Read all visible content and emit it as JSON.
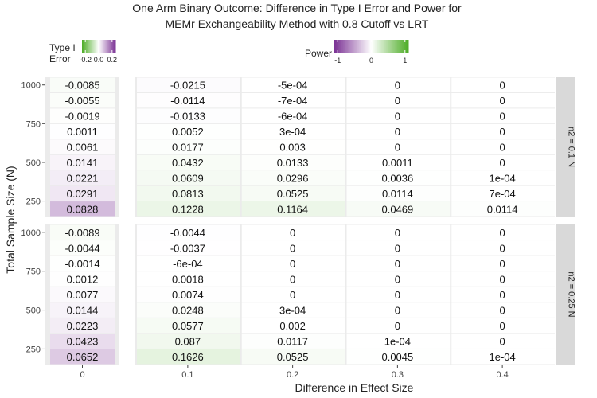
{
  "chart_data": {
    "type": "heatmap",
    "title": "One Arm Binary Outcome: Difference in Type I Error and Power for",
    "subtitle": "MEMr Exchangeability Method with 0.8 Cutoff vs LRT",
    "xlabel": "Difference in Effect Size",
    "ylabel": "Total Sample Size (N)",
    "facet_labels": [
      "n2 = 0.1 N",
      "n2 = 0.25 N"
    ],
    "grid": true,
    "legend_typeI": {
      "title_line1": "Type I",
      "title_line2": "Error",
      "tick_labels": [
        "-0.2",
        "0.0",
        "0.2"
      ],
      "ticks": [
        -0.2,
        0.0,
        0.2
      ],
      "range": [
        -0.25,
        0.25
      ],
      "low_color": "#4dac26",
      "mid_color": "#ffffff",
      "high_color": "#7b3294"
    },
    "legend_power": {
      "title": "Power",
      "tick_labels": [
        "-1",
        "0",
        "1"
      ],
      "ticks": [
        -1,
        0,
        1
      ],
      "range": [
        -1.1,
        1.1
      ],
      "low_color": "#7b3294",
      "mid_color": "#ffffff",
      "high_color": "#4dac26"
    },
    "x_ticks": [
      "0",
      "0.1",
      "0.2",
      "0.3",
      "0.4"
    ],
    "y_ticks": [
      "1000",
      "750",
      "500",
      "250"
    ],
    "y_tick_values": [
      1000,
      750,
      500,
      250
    ],
    "sample_sizes": [
      1000,
      900,
      800,
      700,
      600,
      500,
      400,
      300,
      200
    ],
    "panels": [
      {
        "facet": "n2 = 0.1 N",
        "typeI_labels": [
          "-0.0085",
          "-0.0055",
          "-0.0019",
          "0.0011",
          "0.0061",
          "0.0141",
          "0.0221",
          "0.0291",
          "0.0828"
        ],
        "typeI_values": [
          -0.0085,
          -0.0055,
          -0.0019,
          0.0011,
          0.0061,
          0.0141,
          0.0221,
          0.0291,
          0.0828
        ],
        "power_columns": [
          {
            "x": "0.1",
            "labels": [
              "-0.0215",
              "-0.0114",
              "-0.0133",
              "0.0052",
              "0.0177",
              "0.0432",
              "0.0609",
              "0.0813",
              "0.1228"
            ],
            "values": [
              -0.0215,
              -0.0114,
              -0.0133,
              0.0052,
              0.0177,
              0.0432,
              0.0609,
              0.0813,
              0.1228
            ]
          },
          {
            "x": "0.2",
            "labels": [
              "-5e-04",
              "-7e-04",
              "-6e-04",
              "3e-04",
              "0.003",
              "0.0133",
              "0.0296",
              "0.0525",
              "0.1164"
            ],
            "values": [
              -0.0005,
              -0.0007,
              -0.0006,
              0.0003,
              0.003,
              0.0133,
              0.0296,
              0.0525,
              0.1164
            ]
          },
          {
            "x": "0.3",
            "labels": [
              "0",
              "0",
              "0",
              "0",
              "0",
              "0.0011",
              "0.0036",
              "0.0114",
              "0.0469"
            ],
            "values": [
              0,
              0,
              0,
              0,
              0,
              0.0011,
              0.0036,
              0.0114,
              0.0469
            ]
          },
          {
            "x": "0.4",
            "labels": [
              "0",
              "0",
              "0",
              "0",
              "0",
              "0",
              "1e-04",
              "7e-04",
              "0.0114"
            ],
            "values": [
              0,
              0,
              0,
              0,
              0,
              0,
              0.0001,
              0.0007,
              0.0114
            ]
          }
        ]
      },
      {
        "facet": "n2 = 0.25 N",
        "typeI_labels": [
          "-0.0089",
          "-0.0044",
          "-0.0014",
          "0.0012",
          "0.0077",
          "0.0144",
          "0.0223",
          "0.0423",
          "0.0652"
        ],
        "typeI_values": [
          -0.0089,
          -0.0044,
          -0.0014,
          0.0012,
          0.0077,
          0.0144,
          0.0223,
          0.0423,
          0.0652
        ],
        "power_columns": [
          {
            "x": "0.1",
            "labels": [
              "-0.0044",
              "-0.0037",
              "-6e-04",
              "0.0018",
              "0.0074",
              "0.0248",
              "0.0577",
              "0.087",
              "0.1626"
            ],
            "values": [
              -0.0044,
              -0.0037,
              -0.0006,
              0.0018,
              0.0074,
              0.0248,
              0.0577,
              0.087,
              0.1626
            ]
          },
          {
            "x": "0.2",
            "labels": [
              "0",
              "0",
              "0",
              "0",
              "0",
              "3e-04",
              "0.002",
              "0.0117",
              "0.0525"
            ],
            "values": [
              0,
              0,
              0,
              0,
              0,
              0.0003,
              0.002,
              0.0117,
              0.0525
            ]
          },
          {
            "x": "0.3",
            "labels": [
              "0",
              "0",
              "0",
              "0",
              "0",
              "0",
              "0",
              "1e-04",
              "0.0045"
            ],
            "values": [
              0,
              0,
              0,
              0,
              0,
              0,
              0,
              0.0001,
              0.0045
            ]
          },
          {
            "x": "0.4",
            "labels": [
              "0",
              "0",
              "0",
              "0",
              "0",
              "0",
              "0",
              "0",
              "1e-04"
            ],
            "values": [
              0,
              0,
              0,
              0,
              0,
              0,
              0,
              0,
              0.0001
            ]
          }
        ]
      }
    ]
  }
}
